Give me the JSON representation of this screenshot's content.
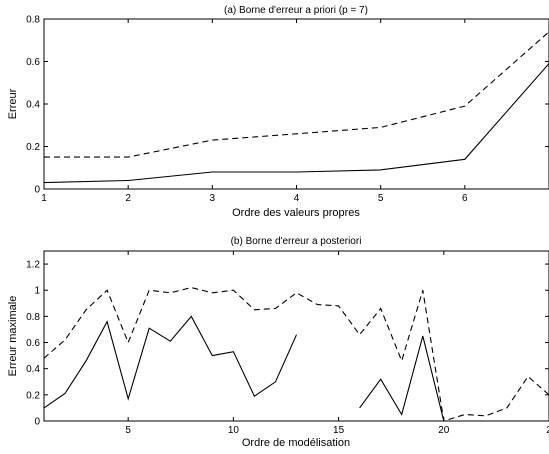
{
  "chart_data": [
    {
      "type": "line",
      "title": "(a) Borne d'erreur a priori (p = 7)",
      "xlabel": "Ordre des valeurs propres",
      "ylabel": "Erreur",
      "xlim": [
        1,
        7
      ],
      "ylim": [
        0,
        0.8
      ],
      "xticks": [
        "1",
        "2",
        "3",
        "4",
        "5",
        "6"
      ],
      "yticks": [
        "0",
        "0.2",
        "0.4",
        "0.6",
        "0.8"
      ],
      "grid": false,
      "x": [
        1,
        2,
        3,
        4,
        5,
        6,
        7
      ],
      "series": [
        {
          "style": "solid",
          "values": [
            0.03,
            0.04,
            0.08,
            0.08,
            0.09,
            0.14,
            0.59
          ]
        },
        {
          "style": "dashed",
          "values": [
            0.15,
            0.15,
            0.23,
            0.26,
            0.29,
            0.39,
            0.74
          ]
        }
      ]
    },
    {
      "type": "line",
      "title": "(b) Borne d'erreur a posteriori",
      "xlabel": "Ordre de modélisation",
      "ylabel": "Erreur maximale",
      "xlim": [
        1,
        25
      ],
      "ylim": [
        0,
        1.3
      ],
      "xticks": [
        "5",
        "10",
        "15",
        "20",
        "2"
      ],
      "yticks": [
        "0",
        "0.2",
        "0.4",
        "0.6",
        "0.8",
        "1",
        "1.2"
      ],
      "grid": false,
      "x": [
        1,
        2,
        3,
        4,
        5,
        6,
        7,
        8,
        9,
        10,
        11,
        12,
        13,
        14,
        15,
        16,
        17,
        18,
        19,
        20,
        21,
        22,
        23,
        24,
        25
      ],
      "series": [
        {
          "style": "solid",
          "values": [
            0.1,
            0.21,
            0.46,
            0.76,
            0.17,
            0.71,
            0.61,
            0.8,
            0.5,
            0.53,
            0.19,
            0.3,
            0.66,
            null,
            null,
            0.1,
            0.32,
            0.05,
            0.65,
            0.0,
            null,
            null,
            null,
            null,
            null
          ]
        },
        {
          "style": "dashed",
          "values": [
            0.48,
            0.62,
            0.85,
            1.0,
            0.6,
            1.0,
            0.98,
            1.02,
            0.98,
            1.0,
            0.85,
            0.86,
            0.98,
            0.89,
            0.88,
            0.66,
            0.86,
            0.46,
            1.0,
            0.0,
            0.05,
            0.04,
            0.1,
            0.34,
            0.2
          ]
        }
      ]
    }
  ]
}
